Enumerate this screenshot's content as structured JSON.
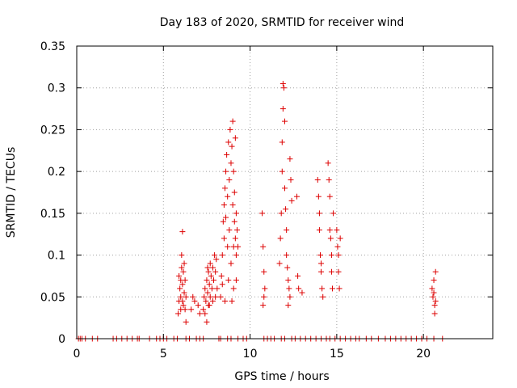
{
  "chart_data": {
    "type": "scatter",
    "title": "Day 183 of 2020, SRMTID for receiver wind",
    "xlabel": "GPS time / hours",
    "ylabel": "SRMTID / TECUs",
    "xlim": [
      0,
      24
    ],
    "ylim": [
      0,
      0.35
    ],
    "x_ticks": [
      0,
      5,
      10,
      15,
      20
    ],
    "y_ticks": [
      0,
      0.05,
      0.1,
      0.15,
      0.2,
      0.25,
      0.3,
      0.35
    ],
    "x_tick_labels": [
      "0",
      "5",
      "10",
      "15",
      "20"
    ],
    "y_tick_labels": [
      "0",
      "0.05",
      "0.1",
      "0.15",
      "0.2",
      "0.25",
      "0.3",
      "0.35"
    ],
    "grid": true,
    "marker": "+",
    "color": "#dd0000",
    "series": [
      {
        "name": "SRMTID",
        "points": [
          [
            0.1,
            0
          ],
          [
            0.2,
            0
          ],
          [
            0.3,
            0
          ],
          [
            0.5,
            0
          ],
          [
            0.9,
            0
          ],
          [
            1.2,
            0
          ],
          [
            2.1,
            0
          ],
          [
            2.3,
            0
          ],
          [
            2.6,
            0
          ],
          [
            2.9,
            0
          ],
          [
            3.2,
            0
          ],
          [
            3.5,
            0
          ],
          [
            3.6,
            0
          ],
          [
            4.2,
            0
          ],
          [
            4.6,
            0
          ],
          [
            4.8,
            0
          ],
          [
            5.0,
            0
          ],
          [
            5.2,
            0
          ],
          [
            5.6,
            0
          ],
          [
            5.8,
            0
          ],
          [
            6.3,
            0
          ],
          [
            6.5,
            0
          ],
          [
            6.9,
            0
          ],
          [
            7.1,
            0
          ],
          [
            7.3,
            0
          ],
          [
            8.2,
            0
          ],
          [
            8.3,
            0
          ],
          [
            8.7,
            0
          ],
          [
            8.9,
            0
          ],
          [
            9.3,
            0
          ],
          [
            9.6,
            0
          ],
          [
            9.8,
            0
          ],
          [
            10.8,
            0
          ],
          [
            11.0,
            0
          ],
          [
            11.2,
            0
          ],
          [
            11.4,
            0
          ],
          [
            11.8,
            0
          ],
          [
            12.0,
            0
          ],
          [
            12.4,
            0
          ],
          [
            12.6,
            0
          ],
          [
            12.9,
            0
          ],
          [
            13.2,
            0
          ],
          [
            13.5,
            0
          ],
          [
            13.8,
            0
          ],
          [
            14.1,
            0
          ],
          [
            14.4,
            0
          ],
          [
            14.6,
            0
          ],
          [
            14.9,
            0
          ],
          [
            15.2,
            0
          ],
          [
            15.5,
            0
          ],
          [
            15.8,
            0
          ],
          [
            16.1,
            0
          ],
          [
            16.3,
            0
          ],
          [
            16.7,
            0
          ],
          [
            17.0,
            0
          ],
          [
            17.4,
            0
          ],
          [
            17.8,
            0
          ],
          [
            18.1,
            0
          ],
          [
            18.4,
            0
          ],
          [
            18.7,
            0
          ],
          [
            19.0,
            0
          ],
          [
            19.3,
            0
          ],
          [
            19.6,
            0
          ],
          [
            19.9,
            0
          ],
          [
            20.2,
            0
          ],
          [
            20.6,
            0
          ],
          [
            21.1,
            0
          ],
          [
            5.85,
            0.03
          ],
          [
            5.9,
            0.045
          ],
          [
            5.95,
            0.06
          ],
          [
            6.0,
            0.05
          ],
          [
            6.0,
            0.07
          ],
          [
            6.05,
            0.085
          ],
          [
            6.05,
            0.1
          ],
          [
            6.1,
            0.128
          ],
          [
            6.1,
            0.065
          ],
          [
            6.15,
            0.04
          ],
          [
            6.15,
            0.08
          ],
          [
            6.2,
            0.055
          ],
          [
            6.2,
            0.09
          ],
          [
            6.25,
            0.035
          ],
          [
            6.25,
            0.07
          ],
          [
            6.3,
            0.05
          ],
          [
            6.3,
            0.02
          ],
          [
            5.9,
            0.075
          ],
          [
            6.0,
            0.035
          ],
          [
            6.1,
            0.045
          ],
          [
            6.6,
            0.035
          ],
          [
            6.7,
            0.05
          ],
          [
            6.8,
            0.045
          ],
          [
            7.0,
            0.04
          ],
          [
            7.1,
            0.03
          ],
          [
            7.3,
            0.035
          ],
          [
            7.35,
            0.05
          ],
          [
            7.4,
            0.06
          ],
          [
            7.45,
            0.045
          ],
          [
            7.5,
            0.07
          ],
          [
            7.55,
            0.055
          ],
          [
            7.6,
            0.08
          ],
          [
            7.6,
            0.04
          ],
          [
            7.65,
            0.065
          ],
          [
            7.7,
            0.05
          ],
          [
            7.7,
            0.09
          ],
          [
            7.75,
            0.075
          ],
          [
            7.8,
            0.06
          ],
          [
            7.85,
            0.085
          ],
          [
            7.9,
            0.07
          ],
          [
            7.95,
            0.1
          ],
          [
            8.0,
            0.08
          ],
          [
            8.0,
            0.05
          ],
          [
            8.05,
            0.095
          ],
          [
            8.1,
            0.06
          ],
          [
            7.4,
            0.03
          ],
          [
            7.5,
            0.02
          ],
          [
            7.55,
            0.085
          ],
          [
            7.65,
            0.04
          ],
          [
            7.85,
            0.045
          ],
          [
            8.3,
            0.05
          ],
          [
            8.35,
            0.075
          ],
          [
            8.4,
            0.1
          ],
          [
            8.45,
            0.14
          ],
          [
            8.5,
            0.12
          ],
          [
            8.5,
            0.16
          ],
          [
            8.55,
            0.18
          ],
          [
            8.6,
            0.2
          ],
          [
            8.6,
            0.145
          ],
          [
            8.65,
            0.22
          ],
          [
            8.7,
            0.17
          ],
          [
            8.7,
            0.11
          ],
          [
            8.75,
            0.235
          ],
          [
            8.8,
            0.19
          ],
          [
            8.8,
            0.13
          ],
          [
            8.85,
            0.25
          ],
          [
            8.9,
            0.21
          ],
          [
            8.9,
            0.09
          ],
          [
            8.95,
            0.23
          ],
          [
            9.0,
            0.26
          ],
          [
            9.0,
            0.16
          ],
          [
            9.05,
            0.2
          ],
          [
            9.05,
            0.11
          ],
          [
            9.1,
            0.175
          ],
          [
            9.1,
            0.14
          ],
          [
            9.15,
            0.24
          ],
          [
            9.15,
            0.12
          ],
          [
            9.2,
            0.15
          ],
          [
            9.2,
            0.1
          ],
          [
            9.25,
            0.13
          ],
          [
            9.3,
            0.11
          ],
          [
            8.4,
            0.065
          ],
          [
            8.55,
            0.045
          ],
          [
            8.75,
            0.07
          ],
          [
            8.95,
            0.045
          ],
          [
            9.05,
            0.06
          ],
          [
            9.2,
            0.07
          ],
          [
            10.7,
            0.15
          ],
          [
            10.75,
            0.11
          ],
          [
            10.8,
            0.08
          ],
          [
            10.85,
            0.06
          ],
          [
            10.75,
            0.04
          ],
          [
            10.8,
            0.05
          ],
          [
            11.7,
            0.09
          ],
          [
            11.75,
            0.12
          ],
          [
            11.8,
            0.15
          ],
          [
            11.85,
            0.2
          ],
          [
            11.85,
            0.235
          ],
          [
            11.9,
            0.275
          ],
          [
            11.9,
            0.305
          ],
          [
            11.95,
            0.3
          ],
          [
            12.0,
            0.26
          ],
          [
            12.0,
            0.18
          ],
          [
            12.05,
            0.155
          ],
          [
            12.1,
            0.13
          ],
          [
            12.1,
            0.1
          ],
          [
            12.15,
            0.085
          ],
          [
            12.2,
            0.07
          ],
          [
            12.25,
            0.06
          ],
          [
            12.3,
            0.215
          ],
          [
            12.35,
            0.19
          ],
          [
            12.4,
            0.165
          ],
          [
            12.3,
            0.05
          ],
          [
            12.2,
            0.04
          ],
          [
            12.7,
            0.17
          ],
          [
            12.75,
            0.075
          ],
          [
            12.8,
            0.06
          ],
          [
            13.0,
            0.055
          ],
          [
            13.9,
            0.19
          ],
          [
            13.95,
            0.17
          ],
          [
            14.0,
            0.15
          ],
          [
            14.0,
            0.13
          ],
          [
            14.05,
            0.1
          ],
          [
            14.1,
            0.09
          ],
          [
            14.1,
            0.08
          ],
          [
            14.15,
            0.06
          ],
          [
            14.2,
            0.05
          ],
          [
            14.5,
            0.21
          ],
          [
            14.55,
            0.19
          ],
          [
            14.6,
            0.17
          ],
          [
            14.6,
            0.13
          ],
          [
            14.65,
            0.12
          ],
          [
            14.7,
            0.1
          ],
          [
            14.7,
            0.08
          ],
          [
            14.75,
            0.06
          ],
          [
            14.8,
            0.15
          ],
          [
            15.0,
            0.13
          ],
          [
            15.05,
            0.11
          ],
          [
            15.1,
            0.1
          ],
          [
            15.1,
            0.08
          ],
          [
            15.15,
            0.06
          ],
          [
            15.2,
            0.12
          ],
          [
            20.5,
            0.06
          ],
          [
            20.55,
            0.05
          ],
          [
            20.6,
            0.07
          ],
          [
            20.6,
            0.055
          ],
          [
            20.65,
            0.04
          ],
          [
            20.65,
            0.03
          ],
          [
            20.7,
            0.08
          ],
          [
            20.7,
            0.045
          ]
        ]
      }
    ]
  }
}
